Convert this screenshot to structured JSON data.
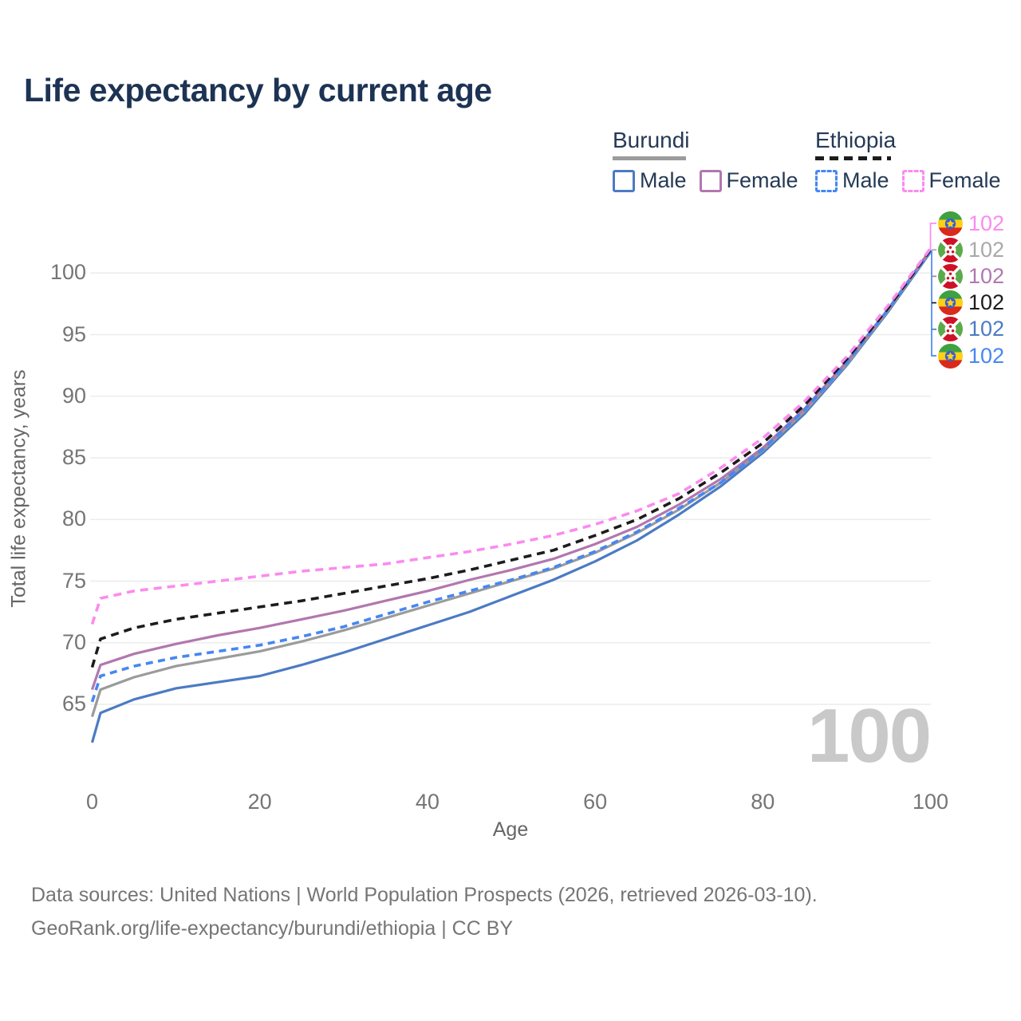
{
  "title": "Life expectancy by current age",
  "legend": {
    "groups": [
      {
        "label": "Burundi",
        "line_style": "solid",
        "line_color": "#9b9b9b",
        "items": [
          {
            "label": "Male",
            "color": "#4b7bc3",
            "dashed": false
          },
          {
            "label": "Female",
            "color": "#b277ae",
            "dashed": false
          }
        ]
      },
      {
        "label": "Ethiopia",
        "line_style": "dashed",
        "line_color": "#1c1c1c",
        "items": [
          {
            "label": "Male",
            "color": "#4687f1",
            "dashed": true
          },
          {
            "label": "Female",
            "color": "#fb8bef",
            "dashed": true
          }
        ]
      }
    ]
  },
  "axes": {
    "x_label": "Age",
    "y_label": "Total life expectancy, years",
    "x_ticks": [
      0,
      20,
      40,
      60,
      80,
      100
    ],
    "y_ticks": [
      65,
      70,
      75,
      80,
      85,
      90,
      95,
      100
    ]
  },
  "watermark": "100",
  "end_labels": [
    {
      "flag": "ethiopia",
      "series": "Ethiopia Female",
      "value": "102",
      "color": "#fb8bef"
    },
    {
      "flag": "burundi",
      "series": "Burundi Both sexes",
      "value": "102",
      "color": "#a9a9a9"
    },
    {
      "flag": "burundi",
      "series": "Burundi Female",
      "value": "102",
      "color": "#b277ae"
    },
    {
      "flag": "ethiopia",
      "series": "Ethiopia Both sexes",
      "value": "102",
      "color": "#1c1c1c"
    },
    {
      "flag": "burundi",
      "series": "Burundi Male",
      "value": "102",
      "color": "#4b7bc3"
    },
    {
      "flag": "ethiopia",
      "series": "Ethiopia Male",
      "value": "102",
      "color": "#4687f1"
    }
  ],
  "footer": {
    "line1": "Data sources: United Nations | World Population Prospects (2026, retrieved 2026-03-10).",
    "line2": "GeoRank.org/life-expectancy/burundi/ethiopia | CC BY"
  },
  "chart_data": {
    "type": "line",
    "title": "Life expectancy by current age",
    "xlabel": "Age",
    "ylabel": "Total life expectancy, years",
    "xlim": [
      0,
      100
    ],
    "ylim": [
      60,
      103
    ],
    "xticks": [
      0,
      20,
      40,
      60,
      80,
      100
    ],
    "yticks": [
      65,
      70,
      75,
      80,
      85,
      90,
      95,
      100
    ],
    "grid": "horizontal-only",
    "legend_position": "top-right",
    "x": [
      0,
      1,
      5,
      10,
      15,
      20,
      25,
      30,
      35,
      40,
      45,
      50,
      55,
      60,
      65,
      70,
      75,
      80,
      85,
      90,
      95,
      100
    ],
    "series": [
      {
        "name": "Burundi Male",
        "country": "Burundi",
        "sex": "Male",
        "style": "solid",
        "color": "#4b7bc3",
        "end_label": "102",
        "values": [
          61.9,
          64.3,
          65.4,
          66.3,
          66.8,
          67.3,
          68.2,
          69.2,
          70.3,
          71.4,
          72.5,
          73.8,
          75.1,
          76.6,
          78.3,
          80.4,
          82.7,
          85.4,
          88.6,
          92.5,
          96.9,
          101.7
        ]
      },
      {
        "name": "Burundi Both sexes",
        "country": "Burundi",
        "sex": "Both",
        "style": "solid",
        "color": "#9b9b9b",
        "end_label": "102",
        "values": [
          64.0,
          66.2,
          67.2,
          68.1,
          68.7,
          69.3,
          70.1,
          71.0,
          72.0,
          73.0,
          74.0,
          75.0,
          76.0,
          77.3,
          78.9,
          80.8,
          83.0,
          85.6,
          88.8,
          92.6,
          97.0,
          101.8
        ]
      },
      {
        "name": "Burundi Female",
        "country": "Burundi",
        "sex": "Female",
        "style": "solid",
        "color": "#b277ae",
        "end_label": "102",
        "values": [
          66.2,
          68.2,
          69.1,
          69.9,
          70.6,
          71.2,
          71.9,
          72.6,
          73.4,
          74.2,
          75.1,
          75.9,
          76.8,
          78.0,
          79.4,
          81.2,
          83.3,
          85.8,
          89.0,
          92.8,
          97.1,
          101.9
        ]
      },
      {
        "name": "Ethiopia Male",
        "country": "Ethiopia",
        "sex": "Male",
        "style": "dashed",
        "color": "#4687f1",
        "end_label": "102",
        "values": [
          65.2,
          67.3,
          68.1,
          68.8,
          69.3,
          69.8,
          70.5,
          71.3,
          72.3,
          73.3,
          74.2,
          75.1,
          76.1,
          77.4,
          79.0,
          80.9,
          83.0,
          85.7,
          88.9,
          92.7,
          97.1,
          101.8
        ]
      },
      {
        "name": "Ethiopia Both sexes",
        "country": "Ethiopia",
        "sex": "Both",
        "style": "dashed",
        "color": "#1c1c1c",
        "end_label": "102",
        "values": [
          68.0,
          70.3,
          71.2,
          71.9,
          72.4,
          72.9,
          73.4,
          74.0,
          74.6,
          75.2,
          75.9,
          76.7,
          77.5,
          78.7,
          80.0,
          81.7,
          83.8,
          86.2,
          89.3,
          93.0,
          97.2,
          101.9
        ]
      },
      {
        "name": "Ethiopia Female",
        "country": "Ethiopia",
        "sex": "Female",
        "style": "dashed",
        "color": "#fb8bef",
        "end_label": "102",
        "values": [
          71.5,
          73.6,
          74.2,
          74.6,
          75.0,
          75.4,
          75.8,
          76.1,
          76.4,
          76.9,
          77.4,
          78.0,
          78.7,
          79.6,
          80.7,
          82.1,
          84.2,
          86.6,
          89.6,
          93.2,
          97.4,
          102.0
        ]
      }
    ]
  }
}
